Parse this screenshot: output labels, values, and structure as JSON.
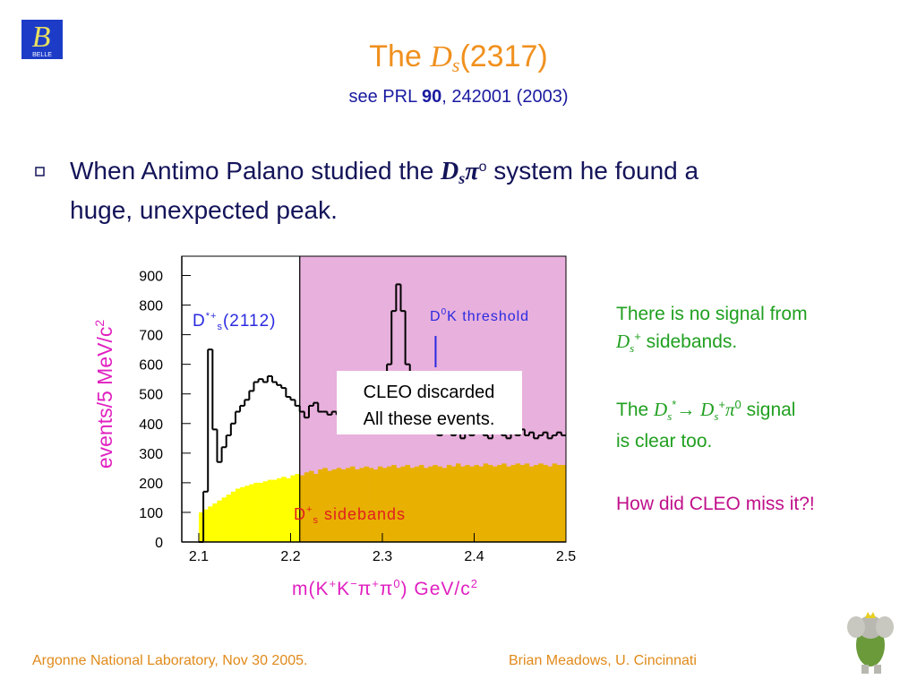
{
  "logo": {
    "letter": "B",
    "name": "BELLE"
  },
  "header": {
    "title": [
      "The ",
      "D",
      "s",
      "(2317)"
    ],
    "subtitle": [
      "see PRL ",
      "90",
      ", 242001 (2003)"
    ]
  },
  "bullet": {
    "line1": [
      "When Antimo Palano studied the ",
      "D",
      "s",
      "π",
      "o",
      " system he found a"
    ],
    "line2": "huge, unexpected peak."
  },
  "chart_data": {
    "type": "histogram",
    "bins": [
      2.1,
      2.105,
      2.11,
      2.115,
      2.12,
      2.125,
      2.13,
      2.135,
      2.14,
      2.145,
      2.15,
      2.155,
      2.16,
      2.165,
      2.17,
      2.175,
      2.18,
      2.185,
      2.19,
      2.195,
      2.2,
      2.205,
      2.21,
      2.215,
      2.22,
      2.225,
      2.23,
      2.235,
      2.24,
      2.245,
      2.25,
      2.255,
      2.26,
      2.265,
      2.27,
      2.275,
      2.28,
      2.285,
      2.29,
      2.295,
      2.3,
      2.305,
      2.31,
      2.315,
      2.32,
      2.325,
      2.33,
      2.335,
      2.34,
      2.345,
      2.35,
      2.355,
      2.36,
      2.365,
      2.37,
      2.375,
      2.38,
      2.385,
      2.39,
      2.395,
      2.4,
      2.405,
      2.41,
      2.415,
      2.42,
      2.425,
      2.43,
      2.435,
      2.44,
      2.445,
      2.45,
      2.455,
      2.46,
      2.465,
      2.47,
      2.475,
      2.48,
      2.485,
      2.49,
      2.495,
      2.5
    ],
    "series": [
      {
        "color": "#000000",
        "values": [
          0,
          170,
          650,
          380,
          270,
          320,
          360,
          400,
          440,
          460,
          480,
          510,
          540,
          550,
          540,
          560,
          540,
          530,
          520,
          490,
          480,
          460,
          440,
          420,
          460,
          470,
          440,
          440,
          430,
          440,
          430,
          420,
          440,
          430,
          460,
          430,
          450,
          440,
          470,
          470,
          500,
          600,
          780,
          870,
          780,
          600,
          500,
          440,
          400,
          380,
          390,
          370,
          360,
          380,
          370,
          360,
          380,
          350,
          370,
          360,
          380,
          370,
          360,
          350,
          370,
          380,
          360,
          350,
          370,
          360,
          380,
          360,
          370,
          350,
          360,
          370,
          350,
          360,
          370,
          360
        ]
      },
      {
        "color": "#ffff00",
        "values": [
          100,
          110,
          120,
          130,
          140,
          150,
          160,
          170,
          180,
          185,
          190,
          195,
          200,
          200,
          205,
          210,
          210,
          215,
          220,
          215,
          225,
          230,
          225,
          235,
          240,
          230,
          245,
          250,
          240,
          245,
          250,
          245,
          250,
          255,
          245,
          250,
          255,
          250,
          245,
          255,
          250,
          255,
          260,
          250,
          255,
          260,
          250,
          255,
          260,
          250,
          255,
          260,
          255,
          250,
          260,
          255,
          265,
          255,
          260,
          255,
          260,
          255,
          265,
          260,
          255,
          260,
          265,
          255,
          260,
          265,
          260,
          265,
          255,
          260,
          265,
          260,
          255,
          265,
          260,
          260
        ]
      }
    ],
    "xlim": [
      2.0815,
      2.5
    ],
    "ylim": [
      0,
      965
    ],
    "xticks": [
      2.1,
      2.2,
      2.3,
      2.4,
      2.5
    ],
    "yticks": [
      0,
      100,
      200,
      300,
      400,
      500,
      600,
      700,
      800,
      900
    ],
    "highlight_xlim": [
      2.21,
      2.5
    ],
    "highlight_color": "#e8b0dc",
    "threshold_x": 2.358,
    "xlabel": [
      "m(K",
      "+",
      "K",
      "−",
      "π",
      "+",
      "π",
      "0",
      ") GeV/c",
      "2"
    ],
    "ylabel": [
      "events/5 MeV/c",
      "2"
    ],
    "peak_label": [
      "D",
      "*+",
      "s",
      "(2112)"
    ],
    "threshold_label": [
      "D",
      "0",
      "K threshold"
    ],
    "sideband_label": [
      "D",
      "+",
      "s",
      " sidebands"
    ],
    "box_text": [
      "CLEO discarded",
      "All these events."
    ]
  },
  "notes": {
    "n1_line1": "There is no signal from",
    "n1_line2": [
      "D",
      "s",
      "+",
      " sidebands."
    ],
    "n2_line1": [
      "The ",
      "D",
      "s",
      "*",
      "→ ",
      "D",
      "s",
      "+",
      "π",
      "0",
      " signal"
    ],
    "n2_line2": "is clear too.",
    "n3": "How did CLEO miss it?!"
  },
  "footer": {
    "left": "Argonne National Laboratory, Nov 30 2005.",
    "right": "Brian Meadows, U. Cincinnati"
  }
}
